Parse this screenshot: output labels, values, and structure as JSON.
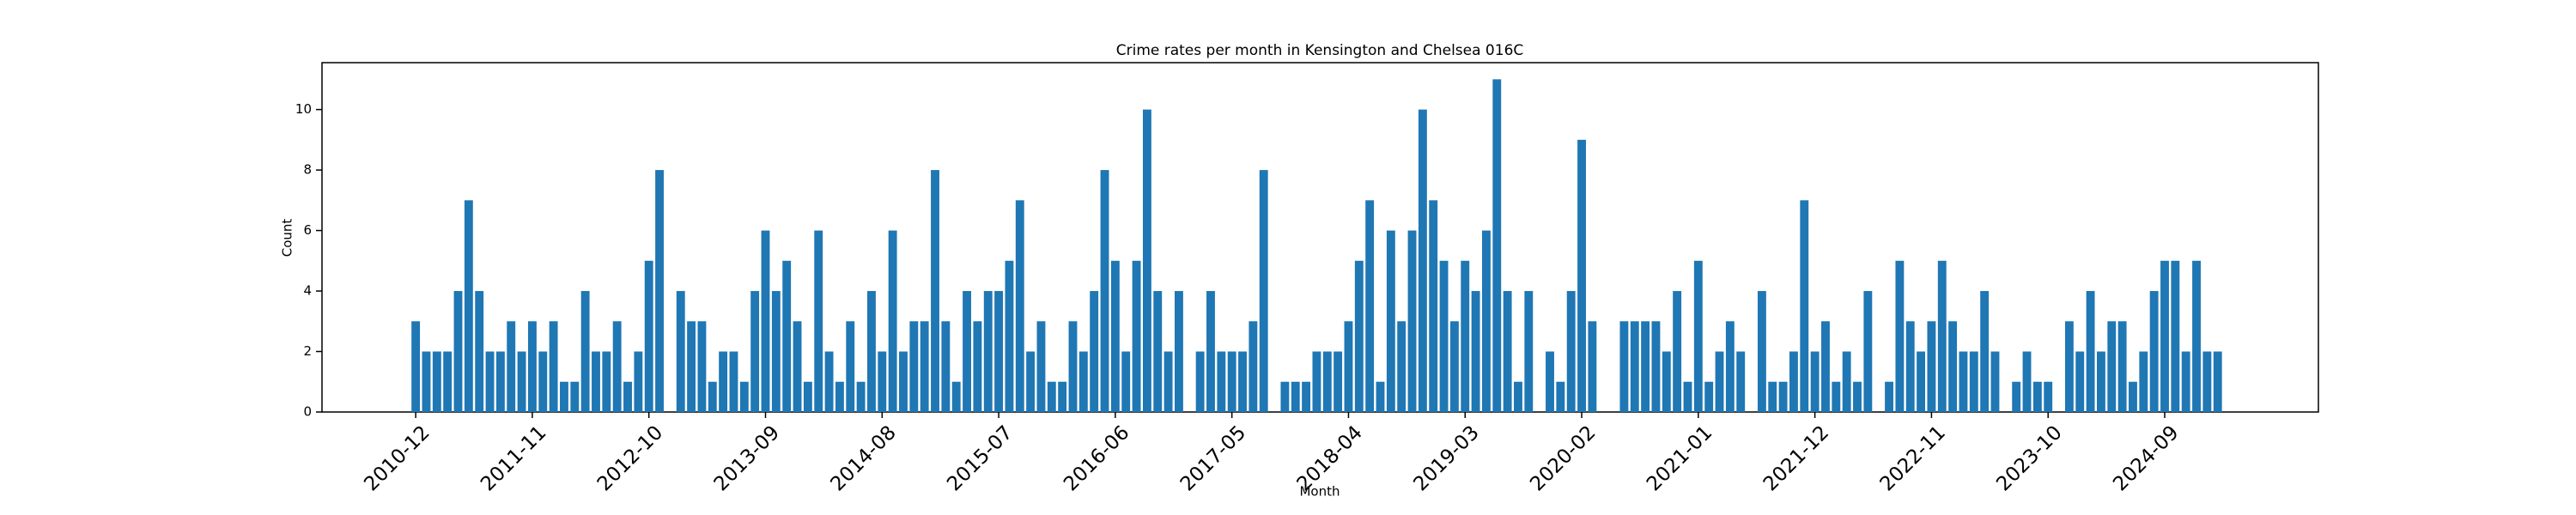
{
  "chart_data": {
    "type": "bar",
    "title": "Crime rates per month in Kensington and Chelsea 016C",
    "x_label": "Month",
    "y_label": "Count",
    "categories": [
      "2010-12",
      null,
      null,
      null,
      null,
      null,
      null,
      null,
      null,
      null,
      null,
      "2011-11",
      null,
      null,
      null,
      null,
      null,
      null,
      null,
      null,
      null,
      null,
      "2012-10",
      null,
      null,
      null,
      null,
      null,
      null,
      null,
      null,
      null,
      null,
      "2013-09",
      null,
      null,
      null,
      null,
      null,
      null,
      null,
      null,
      null,
      null,
      "2014-08",
      null,
      null,
      null,
      null,
      null,
      null,
      null,
      null,
      null,
      null,
      "2015-07",
      null,
      null,
      null,
      null,
      null,
      null,
      null,
      null,
      null,
      null,
      "2016-06",
      null,
      null,
      null,
      null,
      null,
      null,
      null,
      null,
      null,
      null,
      "2017-05",
      null,
      null,
      null,
      null,
      null,
      null,
      null,
      null,
      null,
      null,
      "2018-04",
      null,
      null,
      null,
      null,
      null,
      null,
      null,
      null,
      null,
      null,
      "2019-03",
      null,
      null,
      null,
      null,
      null,
      null,
      null,
      null,
      null,
      null,
      "2020-02",
      null,
      null,
      null,
      null,
      null,
      null,
      null,
      null,
      null,
      null,
      "2021-01",
      null,
      null,
      null,
      null,
      null,
      null,
      null,
      null,
      null,
      null,
      "2021-12",
      null,
      null,
      null,
      null,
      null,
      null,
      null,
      null,
      null,
      null,
      "2022-11",
      null,
      null,
      null,
      null,
      null,
      null,
      null,
      null,
      null,
      null,
      "2023-10",
      null,
      null,
      null,
      null,
      null,
      null,
      null,
      null,
      null,
      null,
      "2024-09",
      null,
      null,
      null,
      null,
      null
    ],
    "values": [
      3,
      2,
      2,
      2,
      4,
      7,
      4,
      2,
      2,
      3,
      2,
      3,
      2,
      3,
      1,
      1,
      4,
      2,
      2,
      3,
      1,
      2,
      5,
      8,
      0,
      4,
      3,
      3,
      1,
      2,
      2,
      1,
      4,
      6,
      4,
      5,
      3,
      1,
      6,
      2,
      1,
      3,
      1,
      4,
      2,
      6,
      2,
      3,
      3,
      8,
      3,
      1,
      4,
      3,
      4,
      4,
      5,
      7,
      2,
      3,
      1,
      1,
      3,
      2,
      4,
      8,
      5,
      2,
      5,
      10,
      4,
      2,
      4,
      0,
      2,
      4,
      2,
      2,
      2,
      3,
      8,
      0,
      1,
      1,
      1,
      2,
      2,
      2,
      3,
      5,
      7,
      1,
      6,
      3,
      6,
      10,
      7,
      5,
      3,
      5,
      4,
      6,
      11,
      4,
      1,
      4,
      0,
      2,
      1,
      4,
      9,
      3,
      0,
      0,
      3,
      3,
      3,
      3,
      2,
      4,
      1,
      5,
      1,
      2,
      3,
      2,
      0,
      4,
      1,
      1,
      2,
      7,
      2,
      3,
      1,
      2,
      1,
      4,
      0,
      1,
      5,
      3,
      2,
      3,
      5,
      3,
      2,
      2,
      4,
      2,
      0,
      1,
      2,
      1,
      1,
      0,
      3,
      2,
      4,
      2,
      3,
      3,
      1,
      2,
      4,
      5,
      5,
      2,
      5,
      2,
      2
    ],
    "color": "#1f77b4",
    "ylim": [
      0,
      11.55
    ],
    "yticks": [
      0,
      2,
      4,
      6,
      8,
      10
    ],
    "grid": false
  }
}
